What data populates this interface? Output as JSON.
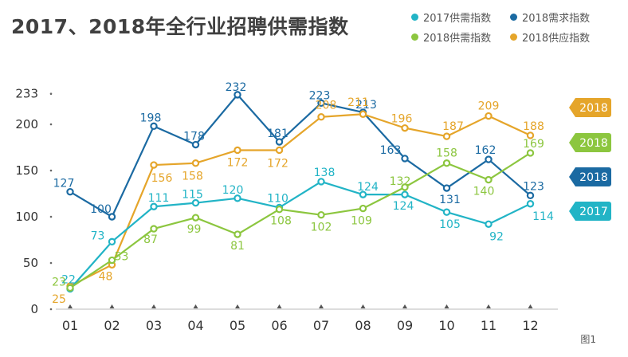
{
  "title": "2017、2018年全行业招聘供需指数",
  "figure_note": "图1",
  "colors": {
    "supply_2017": "#22b4c6",
    "demand_2018": "#1b6aa2",
    "supply_2018": "#8cc63f",
    "supply_idx_2018": "#e5a52a"
  },
  "chart_data": {
    "type": "line",
    "title": "2017、2018年全行业招聘供需指数",
    "xlabel": "",
    "ylabel": "",
    "categories": [
      "01",
      "02",
      "03",
      "04",
      "05",
      "06",
      "07",
      "08",
      "09",
      "10",
      "11",
      "12"
    ],
    "y_ticks": [
      0,
      50,
      100,
      150,
      200,
      233
    ],
    "ylim": [
      0,
      233
    ],
    "grid": false,
    "legend_placement": "top-right",
    "series": [
      {
        "key": "demand_2018",
        "name": "2018需求指数",
        "badge": "2018",
        "color": "#1b6aa2",
        "values": [
          127,
          100,
          198,
          178,
          232,
          181,
          223,
          213,
          163,
          131,
          162,
          123
        ]
      },
      {
        "key": "supply_idx_2018",
        "name": "2018供应指数",
        "badge": "2018",
        "color": "#e5a52a",
        "values": [
          25,
          48,
          156,
          158,
          172,
          172,
          208,
          211,
          196,
          187,
          209,
          188
        ]
      },
      {
        "key": "supply_2017",
        "name": "2017供需指数",
        "badge": "2017",
        "color": "#22b4c6",
        "values": [
          22,
          73,
          111,
          115,
          120,
          110,
          138,
          124,
          124,
          105,
          92,
          114
        ]
      },
      {
        "key": "supply_2018",
        "name": "2018供需指数",
        "badge": "2018",
        "color": "#8cc63f",
        "values": [
          23,
          53,
          87,
          99,
          81,
          108,
          102,
          109,
          132,
          158,
          140,
          169
        ]
      }
    ]
  }
}
